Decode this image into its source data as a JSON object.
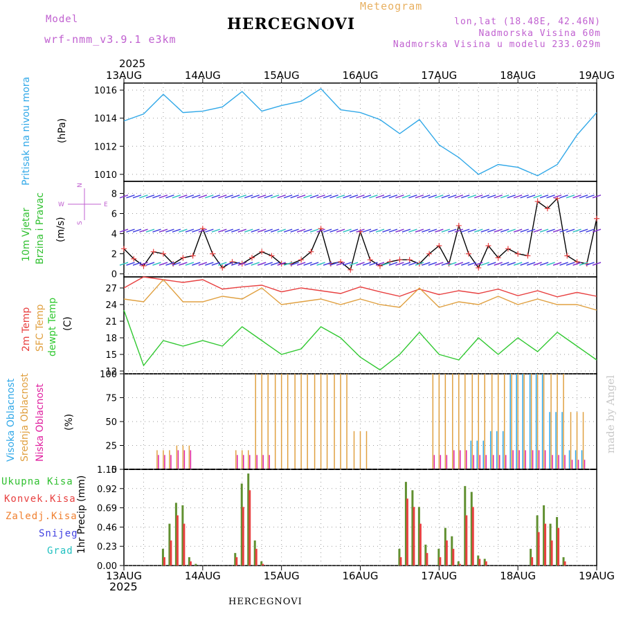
{
  "header": {
    "model_label": "Model",
    "model_name": "wrf-nmm_v3.9.1 e3km",
    "station": "HERCEGNOVI",
    "meteogram_label": "Meteogram",
    "coords": "lon,lat (18.48E, 42.46N)",
    "elevation": "Nadmorska Visina 60m",
    "model_elevation": "Nadmorska Visina u modelu 233.029m",
    "year_top": "2025",
    "year_bottom": "2025"
  },
  "footer": {
    "station": "HERCEGNOVI",
    "made_by": "made by Angel"
  },
  "colors": {
    "pressure": "#30a8e8",
    "wind_label": "#30c030",
    "temp2m": "#e84040",
    "sfc": "#e0a040",
    "dewpt": "#30c830",
    "high_cloud": "#30a8e8",
    "mid_cloud": "#e0a040",
    "low_cloud": "#e020a0",
    "total_rain": "#609030",
    "conv_rain": "#e84040",
    "freezing": "#f08030",
    "snow": "#4040e0",
    "grad": "#20c0c0",
    "purple": "#c060d0"
  },
  "labels": {
    "pressure": [
      "Pritisak na nivou mora",
      "(hPa)"
    ],
    "wind": [
      "10m Vjetar",
      "Brzina i Pravac",
      "(m/s)"
    ],
    "compass": {
      "north": "N",
      "south": "S",
      "west": "W",
      "east": "E"
    },
    "temp": [
      "2m Temp",
      "SFC Temp",
      "dewpt Temp",
      "(C)"
    ],
    "cloud": [
      "Visoka Oblacnost",
      "Srednja Oblacnost",
      "Niska Oblacnost",
      "(%)"
    ],
    "precip_legend": [
      "Ukupna Kisa",
      "Konvek.Kisa",
      "Zaledj.Kisa",
      "Snijeg",
      "Grad"
    ],
    "precip_axis": "1hr Precip (mm)"
  },
  "chart_data": [
    {
      "id": "pressure",
      "type": "line",
      "ylabel": "(hPa)",
      "title": "Pritisak na nivou mora",
      "x_unit": "hours from 13AUG 00Z",
      "x": [
        0,
        6,
        12,
        18,
        24,
        30,
        36,
        42,
        48,
        54,
        60,
        66,
        72,
        78,
        84,
        90,
        96,
        102,
        108,
        114,
        120,
        126,
        132,
        138,
        144
      ],
      "series": [
        {
          "name": "Pressure",
          "values": [
            1013.8,
            1014.3,
            1015.7,
            1014.4,
            1014.5,
            1014.8,
            1015.9,
            1014.5,
            1014.9,
            1015.2,
            1016.1,
            1014.6,
            1014.4,
            1013.9,
            1012.9,
            1013.9,
            1012.1,
            1011.2,
            1010.0,
            1010.7,
            1010.5,
            1009.9,
            1010.7,
            1012.8,
            1014.4
          ]
        }
      ],
      "ylim": [
        1009.5,
        1016.5
      ],
      "yticks": [
        1010,
        1012,
        1014,
        1016
      ],
      "grid": true
    },
    {
      "id": "wind",
      "type": "line",
      "ylabel": "(m/s)",
      "title": "10m Vjetar Brzina i Pravac",
      "x_unit": "hours from 13AUG 00Z",
      "x": [
        0,
        3,
        6,
        9,
        12,
        15,
        18,
        21,
        24,
        27,
        30,
        33,
        36,
        39,
        42,
        45,
        48,
        51,
        54,
        57,
        60,
        63,
        66,
        69,
        72,
        75,
        78,
        81,
        84,
        87,
        90,
        93,
        96,
        99,
        102,
        105,
        108,
        111,
        114,
        117,
        120,
        123,
        126,
        129,
        132,
        135,
        138,
        141,
        144
      ],
      "series": [
        {
          "name": "Wind speed",
          "values": [
            2.5,
            1.5,
            0.8,
            2.2,
            2.0,
            1.0,
            1.6,
            1.8,
            4.5,
            2.0,
            0.6,
            1.2,
            1.0,
            1.6,
            2.2,
            1.8,
            1.0,
            1.0,
            1.4,
            2.2,
            4.5,
            1.0,
            1.2,
            0.4,
            4.2,
            1.4,
            0.8,
            1.2,
            1.4,
            1.4,
            1.0,
            2.0,
            2.8,
            1.0,
            4.8,
            2.0,
            0.6,
            2.8,
            1.6,
            2.5,
            2.0,
            1.8,
            7.2,
            6.5,
            7.5,
            1.8,
            1.2,
            1.0,
            5.5
          ]
        }
      ],
      "ylim": [
        -0.3,
        9.2
      ],
      "yticks": [
        0,
        2,
        4,
        6,
        8
      ],
      "grid": true
    },
    {
      "id": "temperature",
      "type": "line",
      "ylabel": "(C)",
      "x_unit": "hours from 13AUG 00Z",
      "x": [
        0,
        6,
        12,
        18,
        24,
        30,
        36,
        42,
        48,
        54,
        60,
        66,
        72,
        78,
        84,
        90,
        96,
        102,
        108,
        114,
        120,
        126,
        132,
        138,
        144
      ],
      "series": [
        {
          "name": "2m Temp",
          "values": [
            27.0,
            29.0,
            28.5,
            28.0,
            28.5,
            26.8,
            27.2,
            27.5,
            26.3,
            27.0,
            26.5,
            26.0,
            27.2,
            26.3,
            25.5,
            26.8,
            25.8,
            26.5,
            26.0,
            26.8,
            25.6,
            26.5,
            25.4,
            26.2,
            25.5
          ]
        },
        {
          "name": "SFC Temp",
          "values": [
            25.0,
            24.5,
            28.5,
            24.5,
            24.5,
            25.5,
            25.0,
            27.0,
            24.0,
            24.5,
            25.0,
            24.0,
            25.0,
            24.0,
            23.5,
            27.0,
            23.5,
            24.5,
            24.0,
            25.5,
            24.0,
            25.0,
            24.0,
            24.0,
            23.0
          ]
        },
        {
          "name": "dewpt Temp",
          "values": [
            23.0,
            13.0,
            17.5,
            16.5,
            17.5,
            16.5,
            20.0,
            17.5,
            15.0,
            16.0,
            20.0,
            18.0,
            14.5,
            12.2,
            15.0,
            19.0,
            15.0,
            14.0,
            18.0,
            15.0,
            18.0,
            15.5,
            19.0,
            16.5,
            14.0
          ]
        }
      ],
      "ylim": [
        11.5,
        29.0
      ],
      "yticks": [
        12,
        15,
        18,
        21,
        24,
        27
      ],
      "grid": true
    },
    {
      "id": "cloud",
      "type": "bar",
      "ylabel": "(%)",
      "x_unit": "hours from 13AUG 00Z",
      "x": [
        12,
        18,
        24,
        30,
        36,
        42,
        48,
        54,
        60,
        66,
        72,
        78,
        84,
        90,
        96,
        102,
        108,
        114,
        120,
        126,
        132,
        138,
        144
      ],
      "series": [
        {
          "name": "Visoka Oblacnost",
          "values": [
            0,
            0,
            0,
            0,
            0,
            0,
            0,
            0,
            0,
            0,
            0,
            0,
            0,
            0,
            0,
            0,
            30,
            40,
            100,
            100,
            60,
            20,
            0
          ]
        },
        {
          "name": "Srednja Oblacnost",
          "values": [
            20,
            25,
            0,
            0,
            20,
            100,
            100,
            100,
            100,
            100,
            40,
            0,
            0,
            0,
            100,
            100,
            100,
            100,
            100,
            100,
            100,
            60,
            0
          ]
        },
        {
          "name": "Niska Oblacnost",
          "values": [
            15,
            20,
            0,
            0,
            15,
            15,
            0,
            0,
            0,
            0,
            0,
            0,
            0,
            0,
            15,
            20,
            15,
            15,
            20,
            20,
            15,
            10,
            0
          ]
        }
      ],
      "ylim": [
        0,
        100
      ],
      "yticks": [
        0,
        25,
        50,
        75,
        100
      ],
      "grid": true
    },
    {
      "id": "precip",
      "type": "bar",
      "ylabel": "1hr Precip (mm)",
      "x_unit": "hours from 13AUG 00Z",
      "x": [
        12,
        14,
        16,
        18,
        20,
        22,
        34,
        36,
        38,
        40,
        42,
        84,
        86,
        88,
        90,
        92,
        96,
        98,
        100,
        102,
        104,
        106,
        108,
        110,
        124,
        126,
        128,
        130,
        132,
        134
      ],
      "series": [
        {
          "name": "Ukupna Kisa",
          "values": [
            0.2,
            0.5,
            0.75,
            0.72,
            0.1,
            0.02,
            0.15,
            0.98,
            1.1,
            0.3,
            0.05,
            0.2,
            1.0,
            0.9,
            0.7,
            0.25,
            0.2,
            0.45,
            0.35,
            0.05,
            0.95,
            0.88,
            0.12,
            0.08,
            0.2,
            0.6,
            0.72,
            0.5,
            0.58,
            0.1
          ]
        },
        {
          "name": "Konvek.Kisa",
          "values": [
            0.1,
            0.3,
            0.6,
            0.5,
            0.05,
            0.0,
            0.1,
            0.7,
            0.9,
            0.2,
            0.02,
            0.1,
            0.8,
            0.7,
            0.5,
            0.15,
            0.1,
            0.3,
            0.2,
            0.02,
            0.6,
            0.7,
            0.08,
            0.05,
            0.1,
            0.4,
            0.5,
            0.3,
            0.45,
            0.05
          ]
        }
      ],
      "ylim": [
        0,
        1.15
      ],
      "yticks": [
        0,
        0.23,
        0.46,
        0.69,
        0.92,
        1.15
      ],
      "grid": true
    }
  ],
  "time_axis": {
    "top_labels": [
      "13AUG",
      "14AUG",
      "15AUG",
      "16AUG",
      "17AUG",
      "18AUG",
      "19AUG"
    ],
    "bottom_labels": [
      "13AUG",
      "14AUG",
      "15AUG",
      "16AUG",
      "17AUG",
      "18AUG",
      "19AUG"
    ],
    "days_hours": [
      0,
      24,
      48,
      72,
      96,
      120,
      144
    ],
    "xlim_hours": [
      0,
      144
    ]
  }
}
